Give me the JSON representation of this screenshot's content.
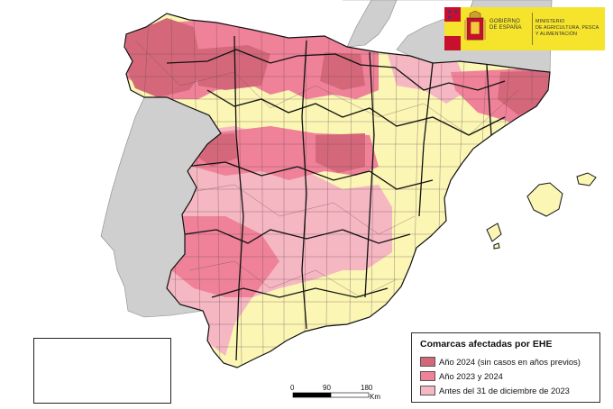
{
  "logo": {
    "gobierno_line1": "GOBIERNO",
    "gobierno_line2": "DE ESPAÑA",
    "ministerio_line1": "MINISTERIO",
    "ministerio_line2": "DE AGRICULTURA, PESCA",
    "ministerio_line3": "Y ALIMENTACIÓN",
    "stars": "★ ★ ★"
  },
  "legend": {
    "title": "Comarcas afectadas por EHE",
    "items": [
      {
        "label": "Año 2024 (sin casos en años previos)",
        "color": "#d4687a"
      },
      {
        "label": "Año 2023 y 2024",
        "color": "#ef8298"
      },
      {
        "label": "Antes del 31 de diciembre de 2023",
        "color": "#f5b7c2"
      }
    ],
    "unaffected_color": "#fbf6b4"
  },
  "scale_bar": {
    "labels": [
      "0",
      "90",
      "180"
    ],
    "unit": "Km"
  },
  "colors": {
    "portugal_france": "#cfcfcf",
    "sea": "#ffffff",
    "border": "#1a1a1a"
  }
}
